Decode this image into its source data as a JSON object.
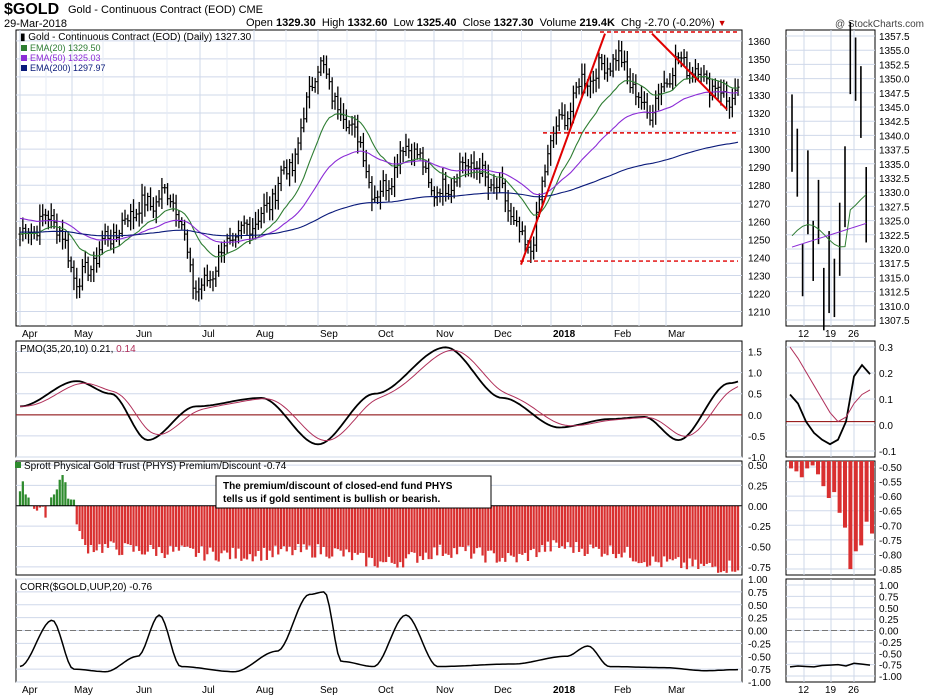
{
  "header": {
    "symbol": "$GOLD",
    "name": "Gold - Continuous Contract (EOD) CME",
    "date": "29-Mar-2018",
    "open_label": "Open",
    "open": "1329.30",
    "high_label": "High",
    "high": "1332.60",
    "low_label": "Low",
    "low": "1325.40",
    "close_label": "Close",
    "close": "1327.30",
    "volume_label": "Volume",
    "volume": "219.4K",
    "chg_label": "Chg",
    "chg": "-2.70 (-0.20%)",
    "brand": "@ StockCharts.com"
  },
  "colors": {
    "price": "#000000",
    "ema20": "#2e7d32",
    "ema50": "#8b2bd6",
    "ema200": "#0a1a7a",
    "pmo": "#000000",
    "pmo_signal": "#b0305a",
    "bar_pos": "#2e8b2e",
    "bar_neg": "#d93030",
    "trendline": "#e00000",
    "grid": "#cfd8ea",
    "zero_line": "#8b0000"
  },
  "chart_data": [
    {
      "type": "ohlc",
      "panel": "price",
      "title": "Gold - Continuous Contract (EOD) (Daily) 1327.30",
      "legend": [
        {
          "label": "EMA(20) 1329.50",
          "color_key": "ema20"
        },
        {
          "label": "EMA(50) 1325.03",
          "color_key": "ema50"
        },
        {
          "label": "EMA(200) 1297.97",
          "color_key": "ema200"
        }
      ],
      "y_ticks": [
        1210,
        1220,
        1230,
        1240,
        1250,
        1260,
        1270,
        1280,
        1290,
        1300,
        1310,
        1320,
        1330,
        1340,
        1350,
        1360
      ],
      "ylim": [
        1202,
        1366
      ],
      "x_months": [
        "Apr",
        "May",
        "Jun",
        "Jul",
        "Aug",
        "Sep",
        "Oct",
        "Nov",
        "Dec",
        "2018",
        "Feb",
        "Mar"
      ],
      "close_anchors": [
        [
          "Apr",
          1253
        ],
        [
          "mid-Apr",
          1262
        ],
        [
          "May",
          1228
        ],
        [
          "mid-May",
          1252
        ],
        [
          "Jun",
          1268
        ],
        [
          "mid-Jun",
          1275
        ],
        [
          "Jul",
          1222
        ],
        [
          "mid-Jul",
          1248
        ],
        [
          "Aug",
          1262
        ],
        [
          "mid-Aug",
          1290
        ],
        [
          "Sep",
          1345
        ],
        [
          "mid-Sep",
          1315
        ],
        [
          "Oct",
          1275
        ],
        [
          "mid-Oct",
          1302
        ],
        [
          "Nov",
          1276
        ],
        [
          "mid-Nov",
          1292
        ],
        [
          "Dec",
          1278
        ],
        [
          "mid-Dec",
          1245
        ],
        [
          "2018",
          1312
        ],
        [
          "mid-Jan",
          1340
        ],
        [
          "Feb",
          1350
        ],
        [
          "mid-Feb",
          1322
        ],
        [
          "Mar",
          1348
        ],
        [
          "end",
          1327.3
        ]
      ],
      "annotations": [
        {
          "kind": "resistance",
          "value": 1366
        },
        {
          "kind": "support",
          "value": 1309
        },
        {
          "kind": "support",
          "value": 1238
        }
      ]
    },
    {
      "type": "line",
      "panel": "pmo",
      "title": "PMO(35,20,10) 0.21, 0.14",
      "series": [
        {
          "name": "PMO",
          "value": 0.21
        },
        {
          "name": "Signal",
          "value": 0.14
        }
      ],
      "y_ticks": [
        -1.0,
        -0.5,
        0.0,
        0.5,
        1.0,
        1.5
      ],
      "ylim": [
        -1.0,
        1.75
      ]
    },
    {
      "type": "bar",
      "panel": "phys",
      "title": "Sprott Physical Gold Trust (PHYS) Premium/Discount -0.74",
      "y_ticks": [
        -0.75,
        -0.5,
        -0.25,
        0.0,
        0.25,
        0.5
      ],
      "ylim": [
        -0.85,
        0.55
      ],
      "annotation": "The premium/discount of closed-end fund PHYS tells us if gold sentiment is bullish or bearish."
    },
    {
      "type": "line",
      "panel": "corr",
      "title": "CORR($GOLD,UUP,20) -0.76",
      "y_ticks": [
        -1.0,
        -0.75,
        -0.5,
        -0.25,
        0.0,
        0.25,
        0.5,
        0.75,
        1.0
      ],
      "ylim": [
        -1.0,
        1.0
      ]
    }
  ],
  "side": {
    "price_ticks": [
      "1357.5",
      "1355.0",
      "1352.5",
      "1350.0",
      "1347.5",
      "1345.0",
      "1342.5",
      "1340.0",
      "1337.5",
      "1335.0",
      "1332.5",
      "1330.0",
      "1327.5",
      "1325.0",
      "1322.5",
      "1320.0",
      "1317.5",
      "1315.0",
      "1312.5",
      "1310.0",
      "1307.5"
    ],
    "pmo_ticks": [
      "0.3",
      "0.2",
      "0.1",
      "0.0",
      "-0.1"
    ],
    "phys_ticks": [
      "-0.50",
      "-0.55",
      "-0.60",
      "-0.65",
      "-0.70",
      "-0.75",
      "-0.80",
      "-0.85"
    ],
    "corr_ticks": [
      "1.00",
      "0.75",
      "0.50",
      "0.25",
      "0.00",
      "-0.25",
      "-0.50",
      "-0.75",
      "-1.00"
    ],
    "x_labels": [
      "12",
      "19",
      "26"
    ]
  }
}
